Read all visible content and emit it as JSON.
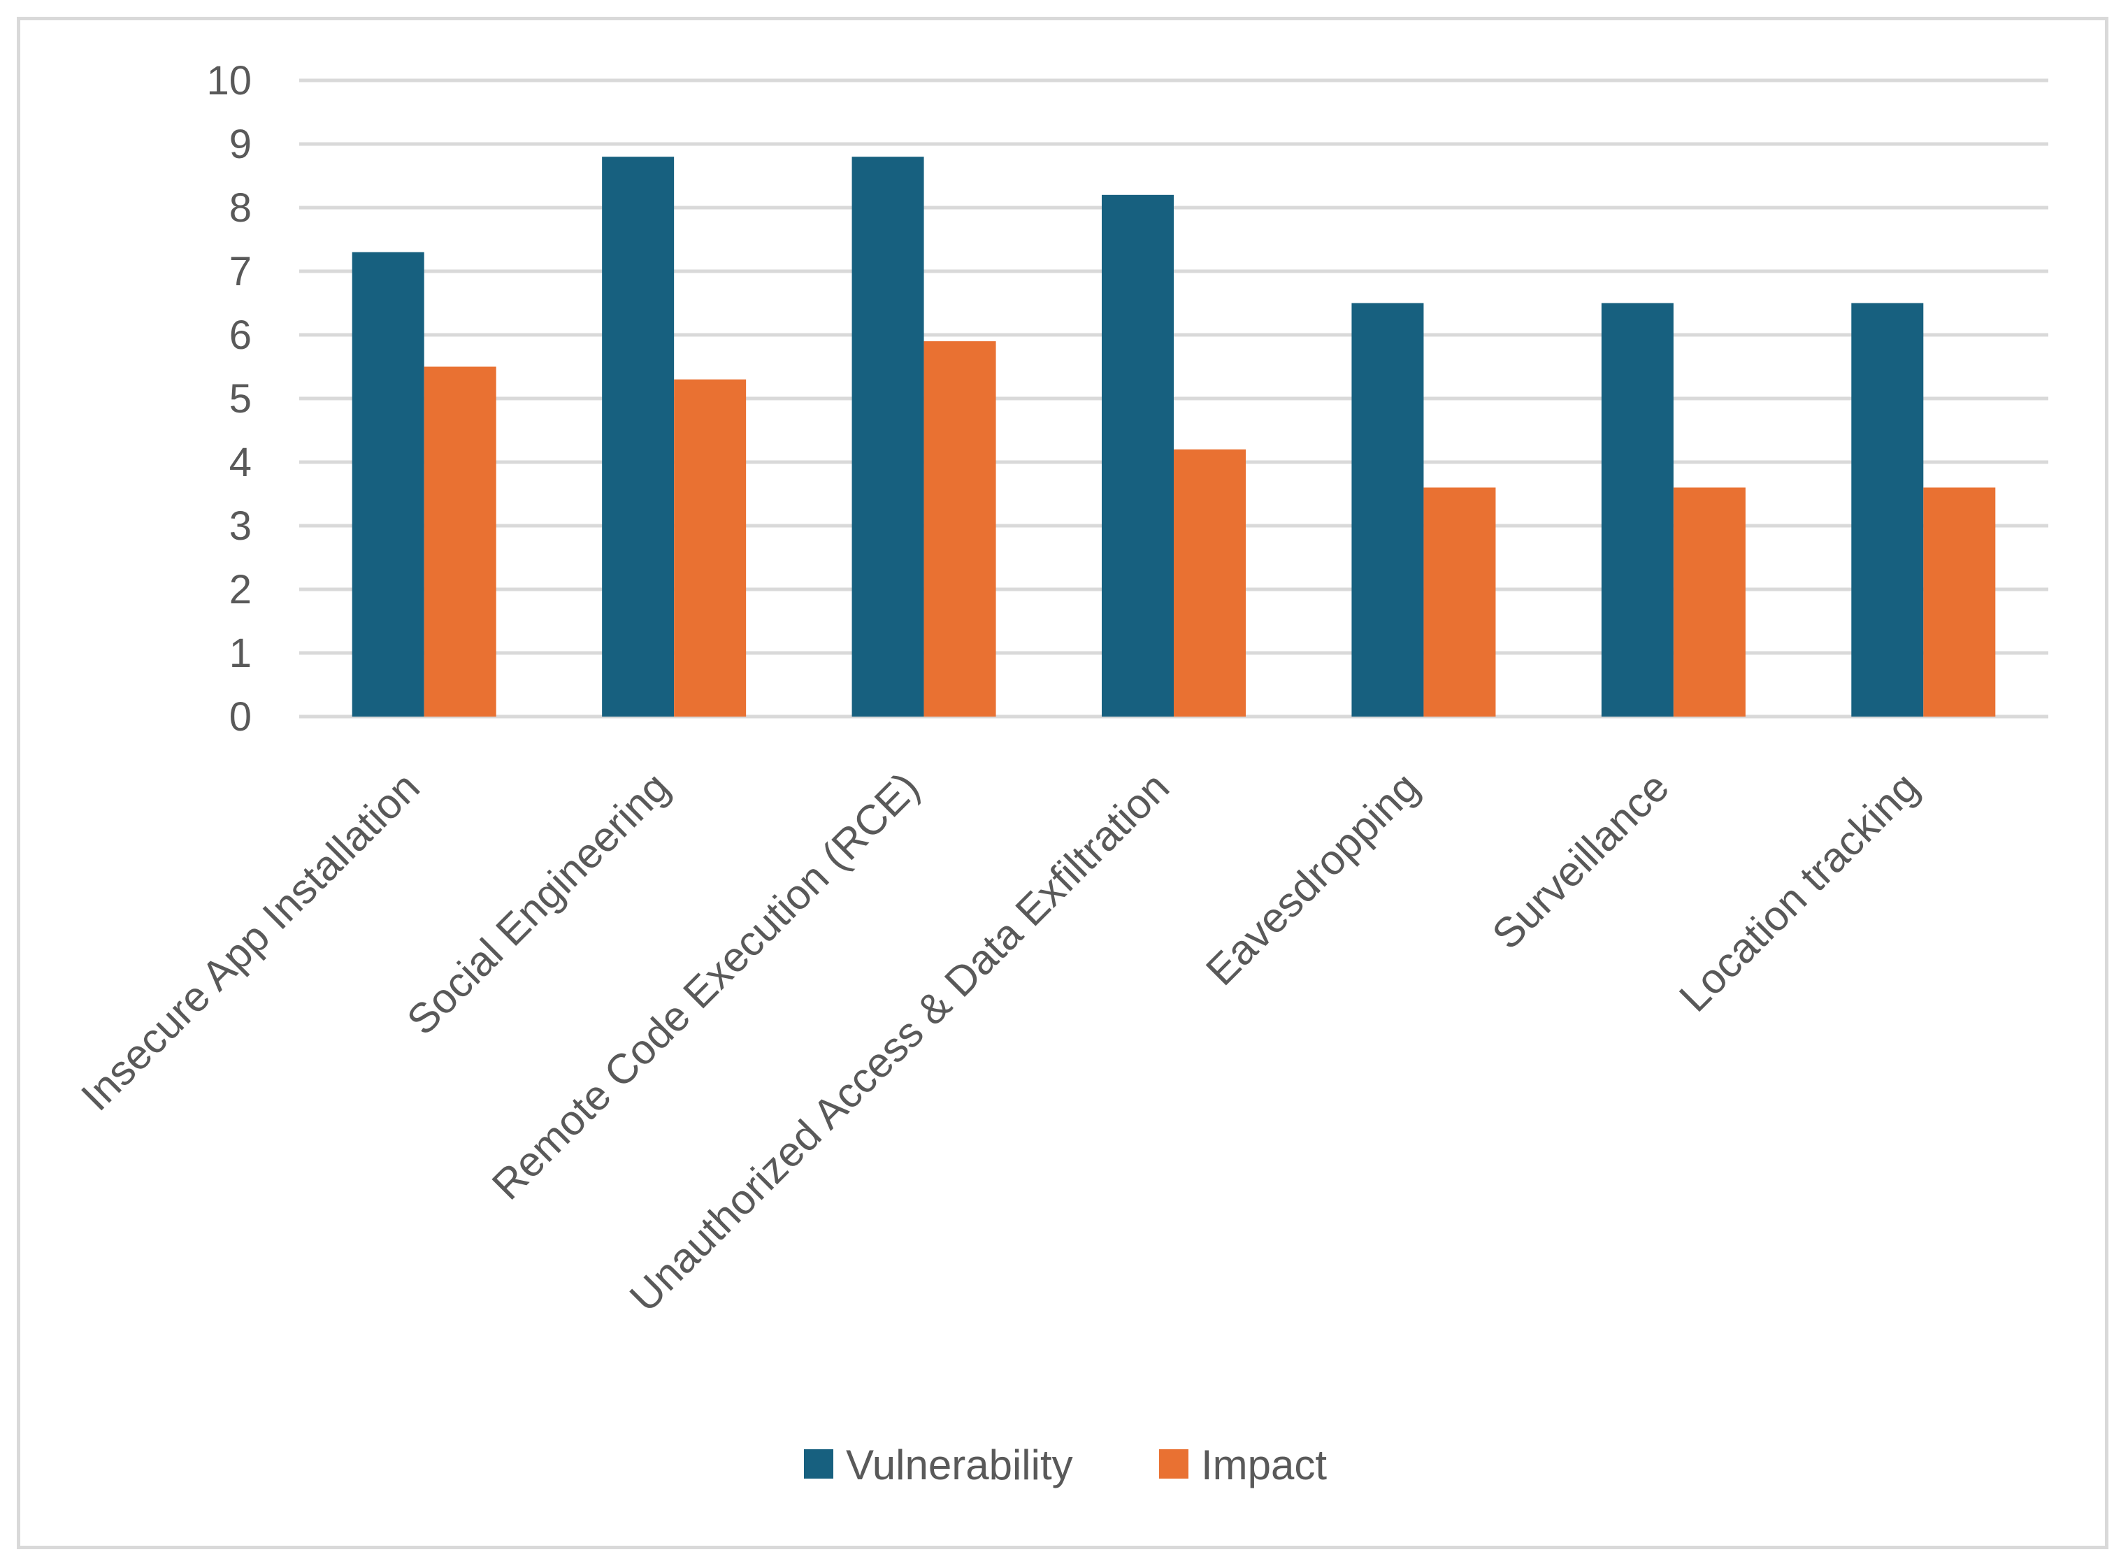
{
  "chart_data": {
    "type": "bar",
    "title": "",
    "xlabel": "",
    "ylabel": "",
    "ylim": [
      0,
      10
    ],
    "yticks": [
      "0",
      "1",
      "2",
      "3",
      "4",
      "5",
      "6",
      "7",
      "8",
      "9",
      "10"
    ],
    "grid": true,
    "legend_position": "bottom",
    "categories": [
      "Insecure App Installation",
      "Social Engineering",
      "Remote Code Execution (RCE)",
      "Unauthorized Access & Data Exfiltration",
      "Eavesdropping",
      "Surveillance",
      "Location tracking"
    ],
    "series": [
      {
        "name": "Vulnerability",
        "color": "#17607f",
        "values": [
          7.3,
          8.8,
          8.8,
          8.2,
          6.5,
          6.5,
          6.5
        ]
      },
      {
        "name": "Impact",
        "color": "#e97132",
        "values": [
          5.5,
          5.3,
          5.9,
          4.2,
          3.6,
          3.6,
          3.6
        ]
      }
    ]
  }
}
